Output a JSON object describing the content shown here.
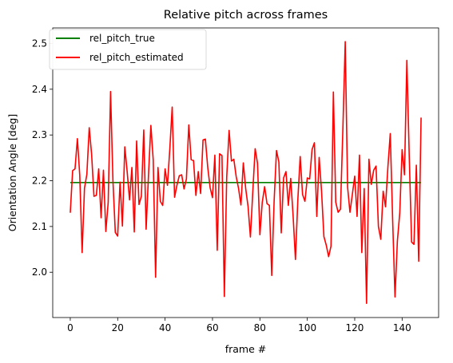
{
  "chart_data": {
    "type": "line",
    "title": "Relative pitch across frames",
    "xlabel": "frame #",
    "ylabel": "Orientation Angle [deg]",
    "xlim": [
      -7.4,
      155.4
    ],
    "ylim": [
      1.901,
      2.534
    ],
    "xticks": [
      0,
      20,
      40,
      60,
      80,
      100,
      120,
      140
    ],
    "yticks": [
      2.0,
      2.1,
      2.2,
      2.3,
      2.4,
      2.5
    ],
    "grid": false,
    "legend_position": "top-left",
    "series": [
      {
        "name": "rel_pitch_true",
        "color": "#008000",
        "x": [
          0,
          148
        ],
        "y": [
          2.196,
          2.196
        ]
      },
      {
        "name": "rel_pitch_estimated",
        "color": "#ff0000",
        "x": [
          0,
          1,
          2,
          3,
          4,
          5,
          6,
          7,
          8,
          9,
          10,
          11,
          12,
          13,
          14,
          15,
          16,
          17,
          18,
          19,
          20,
          21,
          22,
          23,
          24,
          25,
          26,
          27,
          28,
          29,
          30,
          31,
          32,
          33,
          34,
          35,
          36,
          37,
          38,
          39,
          40,
          41,
          42,
          43,
          44,
          45,
          46,
          47,
          48,
          49,
          50,
          51,
          52,
          53,
          54,
          55,
          56,
          57,
          58,
          59,
          60,
          61,
          62,
          63,
          64,
          65,
          66,
          67,
          68,
          69,
          70,
          71,
          72,
          73,
          74,
          75,
          76,
          77,
          78,
          79,
          80,
          81,
          82,
          83,
          84,
          85,
          86,
          87,
          88,
          89,
          90,
          91,
          92,
          93,
          94,
          95,
          96,
          97,
          98,
          99,
          100,
          101,
          102,
          103,
          104,
          105,
          106,
          107,
          108,
          109,
          110,
          111,
          112,
          113,
          114,
          115,
          116,
          117,
          118,
          119,
          120,
          121,
          122,
          123,
          124,
          125,
          126,
          127,
          128,
          129,
          130,
          131,
          132,
          133,
          134,
          135,
          136,
          137,
          138,
          139,
          140,
          141,
          142,
          143,
          144,
          145,
          146,
          147,
          148
        ],
        "y": [
          2.13,
          2.222,
          2.226,
          2.292,
          2.212,
          2.043,
          2.184,
          2.214,
          2.316,
          2.258,
          2.166,
          2.168,
          2.226,
          2.119,
          2.223,
          2.089,
          2.153,
          2.395,
          2.2,
          2.087,
          2.079,
          2.197,
          2.101,
          2.274,
          2.22,
          2.158,
          2.229,
          2.088,
          2.287,
          2.148,
          2.166,
          2.311,
          2.094,
          2.212,
          2.321,
          2.245,
          1.989,
          2.229,
          2.155,
          2.146,
          2.226,
          2.19,
          2.27,
          2.361,
          2.164,
          2.19,
          2.211,
          2.213,
          2.182,
          2.204,
          2.322,
          2.246,
          2.244,
          2.168,
          2.22,
          2.172,
          2.289,
          2.291,
          2.229,
          2.185,
          2.163,
          2.256,
          2.048,
          2.259,
          2.255,
          1.947,
          2.208,
          2.31,
          2.243,
          2.247,
          2.209,
          2.183,
          2.147,
          2.239,
          2.183,
          2.144,
          2.077,
          2.176,
          2.27,
          2.238,
          2.082,
          2.153,
          2.187,
          2.15,
          2.146,
          1.993,
          2.155,
          2.266,
          2.241,
          2.086,
          2.206,
          2.22,
          2.146,
          2.205,
          2.124,
          2.028,
          2.158,
          2.253,
          2.17,
          2.155,
          2.206,
          2.204,
          2.268,
          2.283,
          2.122,
          2.251,
          2.178,
          2.078,
          2.059,
          2.034,
          2.057,
          2.394,
          2.153,
          2.131,
          2.138,
          2.312,
          2.504,
          2.186,
          2.131,
          2.17,
          2.21,
          2.122,
          2.256,
          2.043,
          2.183,
          1.932,
          2.247,
          2.192,
          2.223,
          2.232,
          2.1,
          2.072,
          2.177,
          2.143,
          2.23,
          2.303,
          2.116,
          1.946,
          2.068,
          2.129,
          2.268,
          2.213,
          2.463,
          2.255,
          2.066,
          2.061,
          2.234,
          2.024,
          2.338
        ]
      }
    ]
  }
}
